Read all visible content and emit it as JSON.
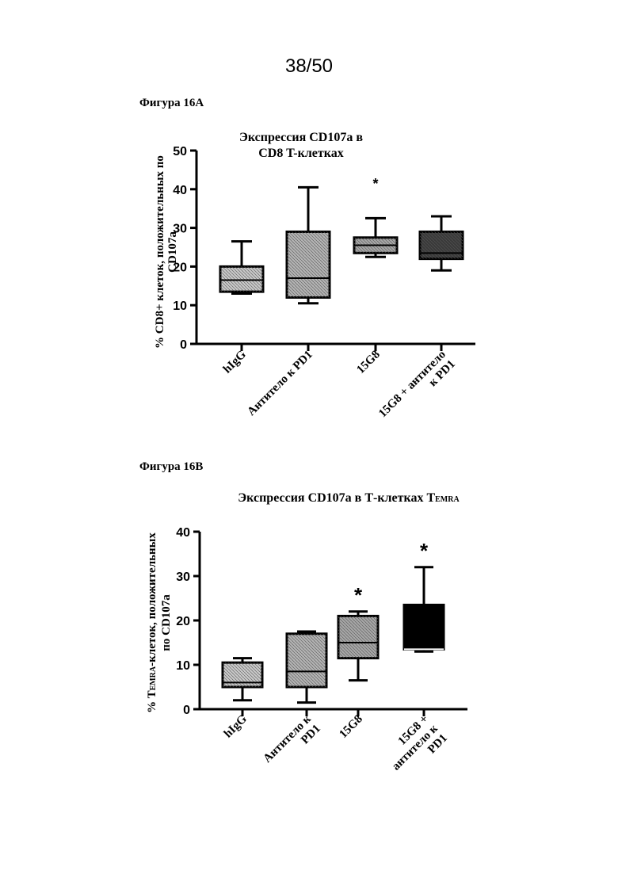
{
  "page_number": "38/50",
  "figures": [
    {
      "label": "Фигура 16A"
    },
    {
      "label": "Фигура 16B"
    }
  ],
  "chart_data": [
    {
      "type": "box",
      "title_lines": [
        "Экспрессия CD107a в",
        "CD8 T-клетках"
      ],
      "ylabel_lines": [
        "% CD8+ клеток, положительных по",
        "CD107a"
      ],
      "ylim": [
        0,
        50
      ],
      "yticks": [
        0,
        10,
        20,
        30,
        40,
        50
      ],
      "categories": [
        {
          "lines": [
            "hIgG"
          ],
          "min": 13,
          "q1": 13.5,
          "median": 16.5,
          "q3": 20,
          "max": 26.5,
          "fill": "#c8c8c8",
          "star": ""
        },
        {
          "lines": [
            "Антитело к PD1"
          ],
          "min": 10.5,
          "q1": 12,
          "median": 17,
          "q3": 29,
          "max": 40.5,
          "fill": "#b3b3b3",
          "star": ""
        },
        {
          "lines": [
            "15G8"
          ],
          "min": 22.5,
          "q1": 23.5,
          "median": 25.5,
          "q3": 27.5,
          "max": 32.5,
          "fill": "#a6a6a6",
          "star": "*"
        },
        {
          "lines": [
            "15G8 + антитело",
            "к PD1"
          ],
          "min": 19,
          "q1": 22,
          "median": 23.5,
          "q3": 29,
          "max": 33,
          "fill": "#3a3a3a",
          "star": ""
        }
      ]
    },
    {
      "type": "box",
      "title_lines": [
        "Экспрессия CD107a в Т-клетках T",
        "EMRA"
      ],
      "ylabel_lines": [
        "% T",
        "EMRA",
        "-клеток, положительных",
        "по CD107a"
      ],
      "ylim": [
        0,
        40
      ],
      "yticks": [
        0,
        10,
        20,
        30,
        40
      ],
      "categories": [
        {
          "lines": [
            "hIgG"
          ],
          "min": 2,
          "q1": 5,
          "median": 6,
          "q3": 10.5,
          "max": 11.5,
          "fill": "#c8c8c8",
          "star": ""
        },
        {
          "lines": [
            "Антитело к",
            "PD1"
          ],
          "min": 1.5,
          "q1": 5,
          "median": 8.5,
          "q3": 17,
          "max": 17.5,
          "fill": "#b3b3b3",
          "star": ""
        },
        {
          "lines": [
            "15G8"
          ],
          "min": 6.5,
          "q1": 11.5,
          "median": 15,
          "q3": 21,
          "max": 22,
          "fill": "#a6a6a6",
          "star": "*"
        },
        {
          "lines": [
            "15G8 +",
            "антитело к",
            "PD1"
          ],
          "min": 13,
          "q1": 13.5,
          "median": 13.5,
          "q3": 23.5,
          "max": 32,
          "fill": "#000000",
          "star": "*"
        }
      ]
    }
  ]
}
